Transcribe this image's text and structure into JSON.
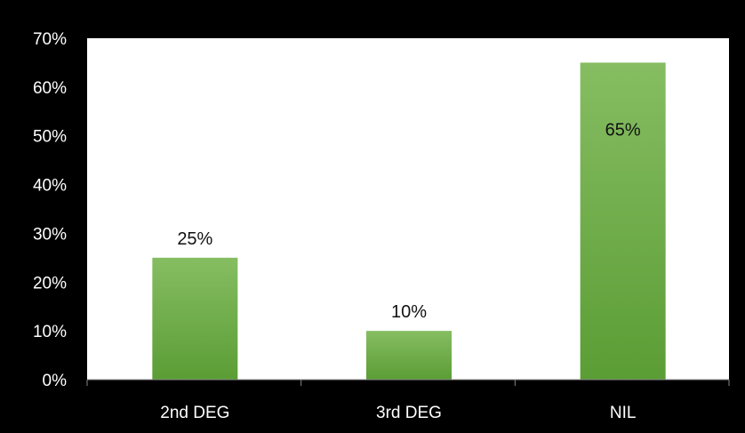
{
  "chart_data": {
    "type": "bar",
    "categories": [
      "2nd DEG",
      "3rd DEG",
      "NIL"
    ],
    "values": [
      25,
      10,
      65
    ],
    "data_labels": [
      "25%",
      "10%",
      "65%"
    ],
    "ylim": [
      0,
      70
    ],
    "y_ticks": [
      "0%",
      "10%",
      "20%",
      "30%",
      "40%",
      "50%",
      "60%",
      "70%"
    ],
    "grid": false,
    "legend": "none",
    "title": "",
    "xlabel": "",
    "ylabel": ""
  },
  "colors": {
    "background": "#000000",
    "plot_area": "#ffffff",
    "bar_top": "#86bd62",
    "bar_bottom": "#5b9d35",
    "axis_text": "#ffffff",
    "data_label": "#111111"
  }
}
